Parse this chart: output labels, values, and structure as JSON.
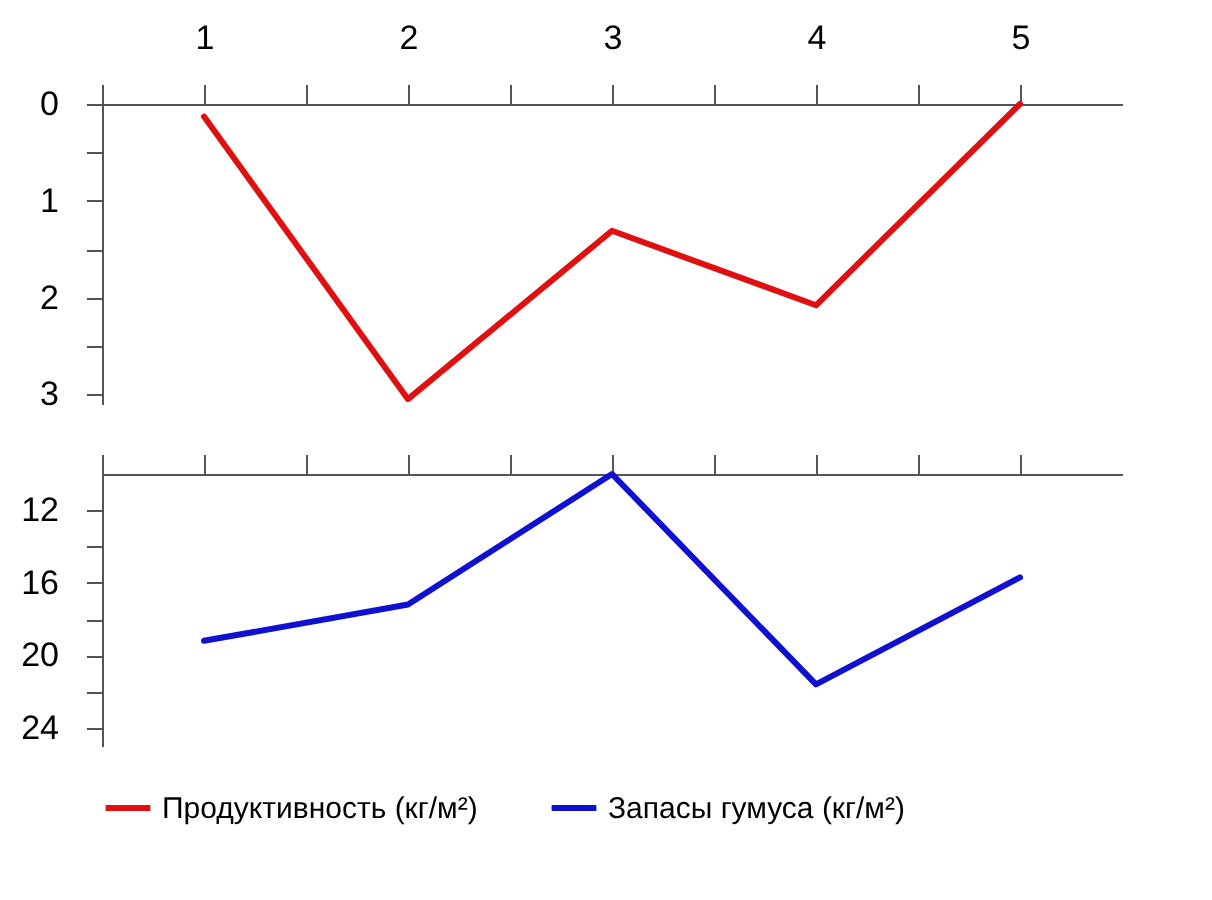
{
  "chart_data": [
    {
      "type": "line",
      "x": [
        1,
        2,
        3,
        4,
        5
      ],
      "xlim": [
        0.5,
        5.5
      ],
      "xticks": [
        {
          "value": 0.5,
          "label": null
        },
        1,
        {
          "value": 1.5,
          "label": null
        },
        2,
        {
          "value": 2.5,
          "label": null
        },
        3,
        {
          "value": 3.5,
          "label": null
        },
        4,
        {
          "value": 4.5,
          "label": null
        },
        5
      ],
      "ylim": [
        3.1,
        0
      ],
      "yticks": [
        0,
        {
          "value": 0.5,
          "label": null
        },
        1,
        {
          "value": 1.5,
          "label": null
        },
        2,
        {
          "value": 2.5,
          "label": null
        },
        3
      ],
      "grid": false,
      "legend": "bottom",
      "marker": "none",
      "line_style": "solid",
      "series": [
        {
          "name": "Продуктивность (кг/м²)",
          "color": "#e01010",
          "values": [
            0.13,
            3.05,
            1.31,
            2.08,
            0
          ]
        }
      ]
    },
    {
      "type": "line",
      "x": [
        1,
        2,
        3,
        4,
        5
      ],
      "xlim": [
        0.5,
        5.5
      ],
      "xticks": [
        {
          "value": 0.5,
          "label": null
        },
        {
          "value": 1,
          "label": null
        },
        {
          "value": 1.5,
          "label": null
        },
        {
          "value": 2,
          "label": null
        },
        {
          "value": 2.5,
          "label": null
        },
        {
          "value": 3,
          "label": null
        },
        {
          "value": 3.5,
          "label": null
        },
        {
          "value": 4,
          "label": null
        },
        {
          "value": 4.5,
          "label": null
        },
        {
          "value": 5,
          "label": null
        }
      ],
      "ylim": [
        25,
        10
      ],
      "yticks": [
        12,
        {
          "value": 14,
          "label": null
        },
        16,
        {
          "value": 18,
          "label": null
        },
        20,
        {
          "value": 22,
          "label": null
        },
        24
      ],
      "tick_labels": "y",
      "grid": false,
      "legend": "bottom",
      "marker": "none",
      "line_style": "solid",
      "series": [
        {
          "name": "Запасы гумуса (кг/м²)",
          "color": "#1010d0",
          "values": [
            19.2,
            17.2,
            10,
            21.6,
            15.7
          ]
        }
      ]
    }
  ]
}
